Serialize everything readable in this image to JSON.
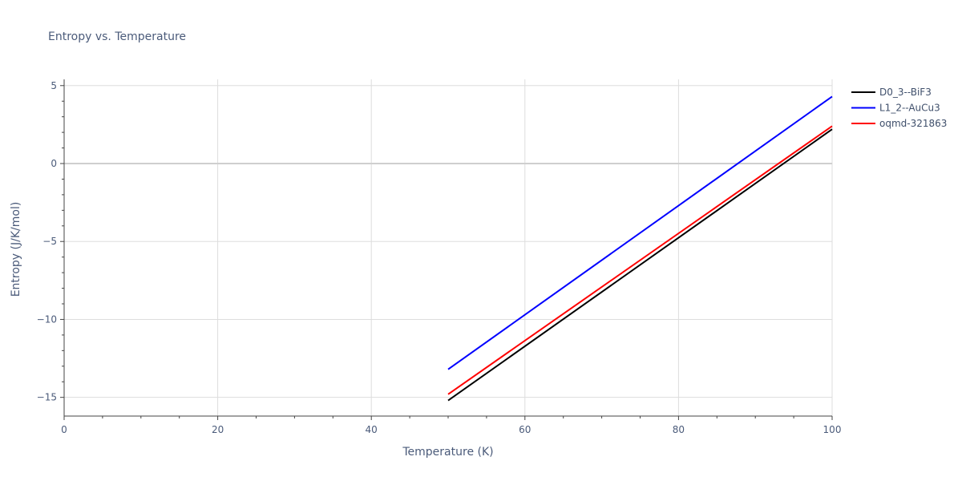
{
  "chart_data": {
    "type": "line",
    "title": "Entropy vs. Temperature",
    "xlabel": "Temperature (K)",
    "ylabel": "Entropy (J/K/mol)",
    "xlim": [
      0,
      100
    ],
    "ylim": [
      -16.2,
      5.4
    ],
    "xticks": [
      0,
      20,
      40,
      60,
      80,
      100
    ],
    "yticks": [
      5,
      0,
      -5,
      -10,
      -15
    ],
    "ytick_labels": [
      "5",
      "0",
      "−5",
      "−10",
      "−15"
    ],
    "grid": true,
    "legend_position": "top-right",
    "series": [
      {
        "name": "D0_3--BiF3",
        "color": "#000000",
        "x": [
          50,
          100
        ],
        "y": [
          -15.2,
          2.2
        ]
      },
      {
        "name": "L1_2--AuCu3",
        "color": "#0000ff",
        "x": [
          50,
          100
        ],
        "y": [
          -13.2,
          4.3
        ]
      },
      {
        "name": "oqmd-321863",
        "color": "#ff0000",
        "x": [
          50,
          100
        ],
        "y": [
          -14.8,
          2.4
        ]
      }
    ]
  }
}
